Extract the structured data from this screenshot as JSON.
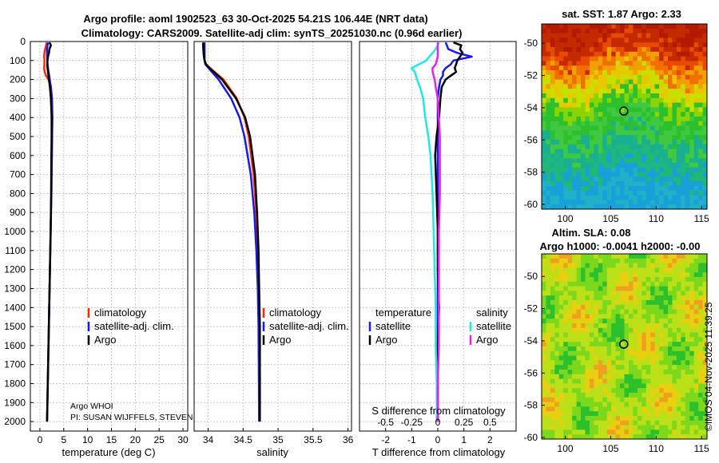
{
  "header": {
    "title_line1": "Argo profile: aoml 1902523_63 30-Oct-2025 54.21S 106.44E (NRT data)",
    "title_line2": "Climatology: CARS2009. Satellite-adj clim: synTS_20251030.nc (0.96d earlier)"
  },
  "colors": {
    "climatology": "#ff2a00",
    "satellite_adj": "#1a1ae6",
    "argo": "#000000",
    "satellite_salinity": "#22e6e6",
    "argo_salinity_diff": "#e622e6",
    "grid": "#c8c8c8"
  },
  "chart_data": [
    {
      "type": "line",
      "title": "",
      "xlabel": "temperature (deg C)",
      "ylabel": "",
      "xlim": [
        -2,
        31
      ],
      "ylim": [
        2050,
        0
      ],
      "x_ticks": [
        "0",
        "5",
        "10",
        "15",
        "20",
        "25",
        "30"
      ],
      "x_tick_values": [
        0,
        5,
        10,
        15,
        20,
        25,
        30
      ],
      "y_ticks": [
        "0",
        "100",
        "200",
        "300",
        "400",
        "500",
        "600",
        "700",
        "800",
        "900",
        "1000",
        "1100",
        "1200",
        "1300",
        "1400",
        "1500",
        "1600",
        "1700",
        "1800",
        "1900",
        "2000"
      ],
      "grid": true,
      "depth": [
        5,
        20,
        40,
        60,
        80,
        100,
        120,
        140,
        160,
        180,
        200,
        240,
        300,
        400,
        500,
        600,
        800,
        1000,
        1200,
        1400,
        1600,
        1800,
        2000
      ],
      "series": [
        {
          "name": "climatology",
          "values": [
            1.4,
            1.3,
            1.1,
            0.95,
            0.9,
            0.95,
            0.95,
            0.9,
            1.0,
            1.3,
            1.8,
            2.3,
            2.55,
            2.6,
            2.55,
            2.5,
            2.4,
            2.25,
            2.1,
            1.95,
            1.8,
            1.65,
            1.5
          ]
        },
        {
          "name": "satellite-adj. clim.",
          "values": [
            1.7,
            1.6,
            1.5,
            1.5,
            1.5,
            1.55,
            1.6,
            1.7,
            1.8,
            1.95,
            2.05,
            2.3,
            2.5,
            2.6,
            2.55,
            2.5,
            2.4,
            2.25,
            2.1,
            1.95,
            1.8,
            1.65,
            1.5
          ]
        },
        {
          "name": "Argo",
          "values": [
            2.0,
            2.3,
            2.0,
            1.9,
            1.7,
            1.6,
            1.55,
            1.6,
            1.7,
            1.8,
            1.9,
            2.1,
            2.3,
            2.45,
            2.45,
            2.4,
            2.35,
            2.25,
            2.1,
            1.95,
            1.8,
            1.65,
            1.5
          ]
        }
      ],
      "legend": [
        "climatology",
        "satellite-adj. clim.",
        "Argo"
      ],
      "annotations": [
        "Argo WHOI",
        "PI: SUSAN WIJFFELS, STEVEN"
      ]
    },
    {
      "type": "line",
      "xlabel": "salinity",
      "xlim": [
        33.8,
        36.05
      ],
      "ylim": [
        2050,
        0
      ],
      "x_ticks": [
        "34",
        "34.5",
        "35",
        "35.5",
        "36"
      ],
      "x_tick_values": [
        34,
        34.5,
        35,
        35.5,
        36
      ],
      "grid": true,
      "depth": [
        5,
        30,
        60,
        80,
        100,
        120,
        150,
        200,
        300,
        400,
        500,
        700,
        900,
        1100,
        1300,
        1500,
        2000
      ],
      "series": [
        {
          "name": "climatology",
          "values": [
            33.93,
            33.93,
            33.935,
            33.94,
            33.95,
            33.97,
            34.06,
            34.22,
            34.41,
            34.52,
            34.58,
            34.65,
            34.69,
            34.71,
            34.72,
            34.73,
            34.73
          ]
        },
        {
          "name": "satellite-adj. clim.",
          "values": [
            33.95,
            33.95,
            33.95,
            33.95,
            33.95,
            33.96,
            34.03,
            34.15,
            34.33,
            34.45,
            34.52,
            34.61,
            34.66,
            34.69,
            34.71,
            34.72,
            34.73
          ]
        },
        {
          "name": "Argo",
          "values": [
            33.93,
            33.93,
            33.935,
            33.94,
            33.95,
            33.97,
            34.05,
            34.2,
            34.4,
            34.53,
            34.6,
            34.67,
            34.7,
            34.72,
            34.73,
            34.74,
            34.74
          ]
        }
      ],
      "legend": [
        "climatology",
        "satellite-adj. clim.",
        "Argo"
      ]
    },
    {
      "type": "line",
      "xlabel": "T difference from climatology",
      "xlabel_top": "S difference from climatology",
      "xlim": [
        -3,
        3
      ],
      "ylim": [
        2050,
        0
      ],
      "x_ticks": [
        "-2",
        "-1",
        "0",
        "1",
        "2"
      ],
      "x_tick_values": [
        -2,
        -1,
        0,
        1,
        2
      ],
      "s_ticks": [
        "-0.5",
        "-0.25",
        "0",
        "0.25",
        "0.5"
      ],
      "s_tick_values": [
        -0.5,
        -0.25,
        0,
        0.25,
        0.5
      ],
      "grid": true,
      "depth": [
        5,
        20,
        40,
        60,
        80,
        100,
        120,
        140,
        160,
        180,
        200,
        240,
        300,
        400,
        500,
        600,
        800,
        1000,
        1200,
        1400,
        1600,
        1800,
        2000
      ],
      "series": [
        {
          "name": "temperature satellite",
          "values": [
            0.3,
            0.35,
            0.4,
            0.75,
            1.3,
            0.6,
            0.5,
            0.3,
            0.2,
            0.2,
            0.1,
            0.05,
            0.0,
            0.0,
            0.0,
            0.0,
            0.0,
            0.0,
            0.0,
            0.0,
            0.0,
            0.0,
            0.0
          ]
        },
        {
          "name": "temperature Argo",
          "values": [
            0.6,
            0.9,
            0.85,
            0.95,
            0.85,
            0.75,
            0.7,
            0.65,
            0.7,
            0.5,
            0.3,
            0.15,
            0.1,
            0.05,
            -0.05,
            -0.1,
            -0.05,
            0.0,
            0.0,
            0.05,
            0.0,
            0.0,
            0.0
          ]
        },
        {
          "name": "salinity satellite",
          "values": [
            0.01,
            0.0,
            -0.02,
            -0.05,
            -0.08,
            -0.11,
            -0.18,
            -0.25,
            -0.22,
            -0.21,
            -0.2,
            -0.17,
            -0.14,
            -0.12,
            -0.09,
            -0.07,
            -0.05,
            -0.04,
            -0.03,
            -0.02,
            -0.02,
            -0.01,
            -0.01
          ]
        },
        {
          "name": "salinity Argo",
          "values": [
            0.0,
            0.0,
            0.0,
            0.0,
            0.0,
            -0.01,
            -0.02,
            -0.05,
            -0.05,
            -0.04,
            -0.03,
            -0.02,
            0.0,
            0.01,
            0.02,
            0.02,
            0.02,
            0.01,
            0.01,
            0.01,
            0.01,
            0.0,
            0.0
          ]
        }
      ],
      "legend_groups": [
        {
          "heading": "temperature",
          "items": [
            "satellite",
            "Argo"
          ]
        },
        {
          "heading": "salinity",
          "items": [
            "satellite",
            "Argo"
          ]
        }
      ]
    },
    {
      "type": "heatmap",
      "title": "sat. SST: 1.87 Argo: 2.33",
      "x_ticks": [
        "100",
        "105",
        "110",
        "115"
      ],
      "x_tick_values": [
        100,
        105,
        110,
        115
      ],
      "y_ticks": [
        "-50",
        "-52",
        "-54",
        "-56",
        "-58",
        "-60"
      ],
      "y_tick_values": [
        -50,
        -52,
        -54,
        -56,
        -58,
        -60
      ],
      "xlim": [
        97.4,
        115.6
      ],
      "ylim": [
        -60.3,
        -48.8
      ],
      "marker": {
        "lon": 106.44,
        "lat": -54.21
      }
    },
    {
      "type": "heatmap",
      "title_line1": "Altim. SLA: 0.08",
      "title_line2": "Argo h1000: -0.0041 h2000: -0.00",
      "x_ticks": [
        "100",
        "105",
        "110",
        "115"
      ],
      "x_tick_values": [
        100,
        105,
        110,
        115
      ],
      "y_ticks": [
        "-50",
        "-52",
        "-54",
        "-56",
        "-58",
        "-60"
      ],
      "y_tick_values": [
        -50,
        -52,
        -54,
        -56,
        -58,
        -60
      ],
      "xlim": [
        97.4,
        115.6
      ],
      "ylim": [
        -60.1,
        -48.6
      ],
      "marker": {
        "lon": 106.44,
        "lat": -54.21
      }
    }
  ],
  "watermark": "©IMOS 04-Nov-2025 11:39:25"
}
